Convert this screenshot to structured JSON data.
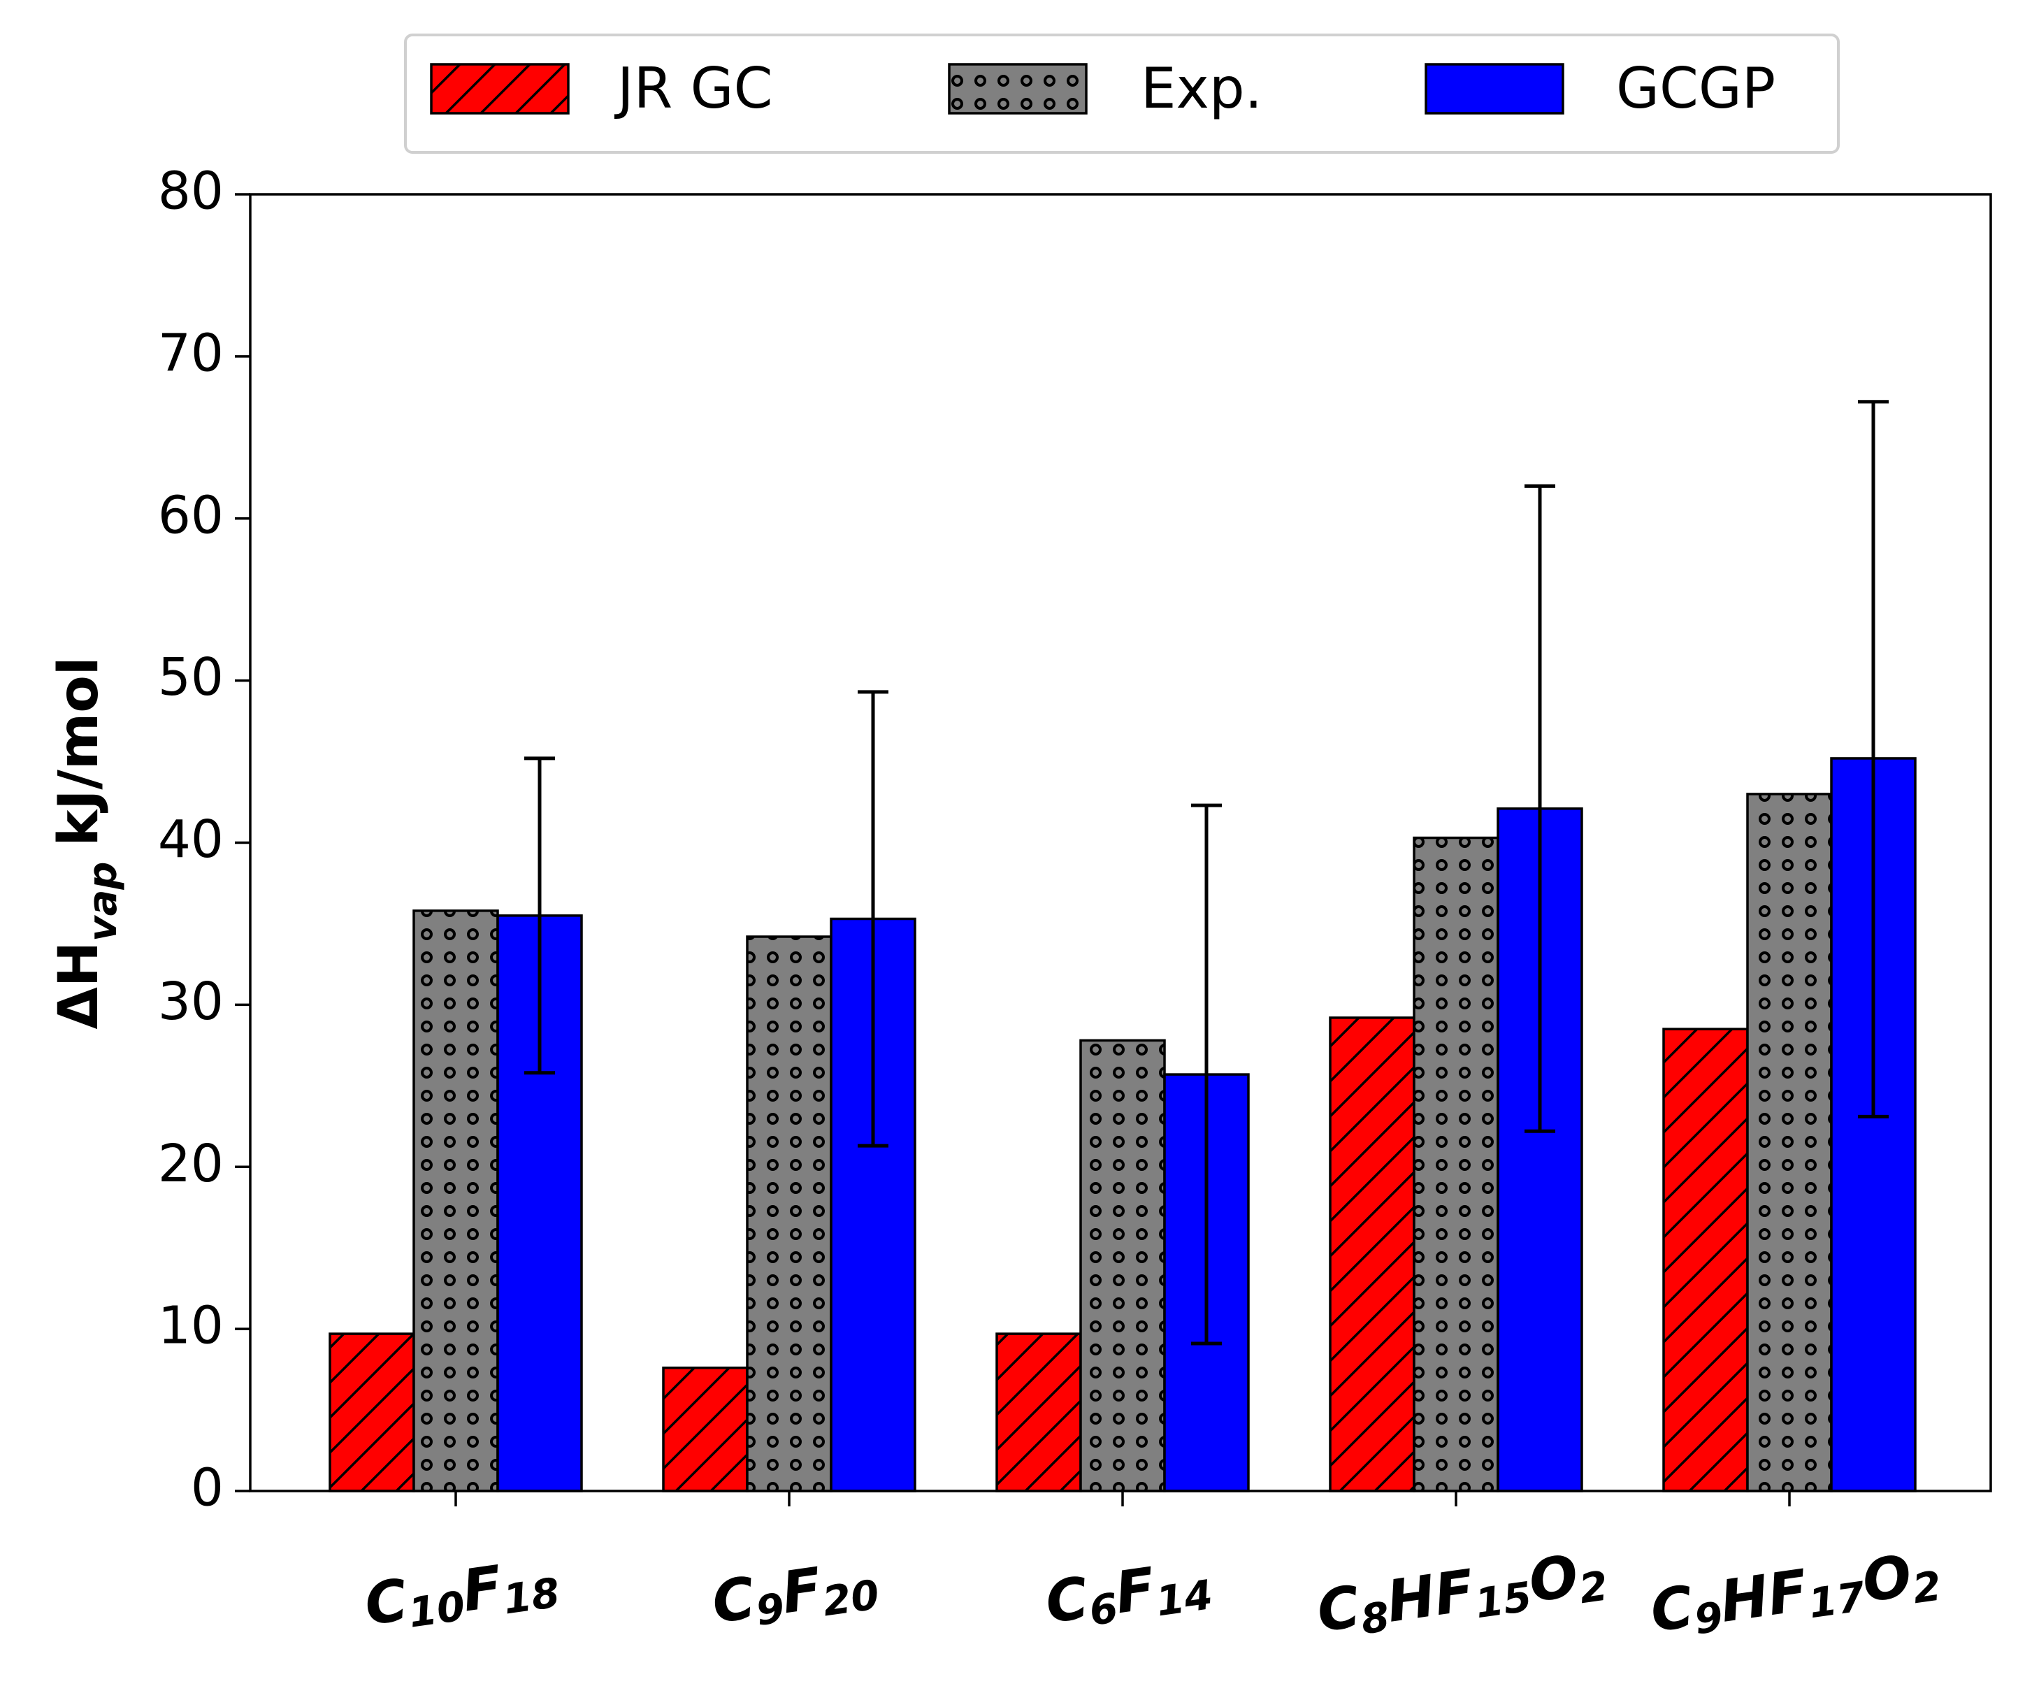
{
  "chart_data": {
    "type": "bar",
    "ylabel": {
      "symbol": "ΔH",
      "subscript": "vap",
      "unit": "kJ/mol"
    },
    "ylim": [
      0,
      80
    ],
    "yticks": [
      0,
      10,
      20,
      30,
      40,
      50,
      60,
      70,
      80
    ],
    "grid": false,
    "legend_placement": "top-center",
    "categories": [
      [
        {
          "t": "C"
        },
        {
          "t": "10",
          "sub": true
        },
        {
          "t": "F"
        },
        {
          "t": "18",
          "sub": true
        }
      ],
      [
        {
          "t": "C"
        },
        {
          "t": "9",
          "sub": true
        },
        {
          "t": "F"
        },
        {
          "t": "20",
          "sub": true
        }
      ],
      [
        {
          "t": "C"
        },
        {
          "t": "6",
          "sub": true
        },
        {
          "t": "F"
        },
        {
          "t": "14",
          "sub": true
        }
      ],
      [
        {
          "t": "C"
        },
        {
          "t": "8",
          "sub": true
        },
        {
          "t": "HF"
        },
        {
          "t": "15",
          "sub": true
        },
        {
          "t": "O"
        },
        {
          "t": "2",
          "sub": true
        }
      ],
      [
        {
          "t": "C"
        },
        {
          "t": "9",
          "sub": true
        },
        {
          "t": "HF"
        },
        {
          "t": "17",
          "sub": true
        },
        {
          "t": "O"
        },
        {
          "t": "2",
          "sub": true
        }
      ]
    ],
    "series": [
      {
        "name": "JR GC",
        "color": "#ff0000",
        "pattern": "hatch-diagonal",
        "values": [
          9.7,
          7.6,
          9.7,
          29.2,
          28.5
        ]
      },
      {
        "name": "Exp.",
        "color": "#808080",
        "pattern": "dots",
        "values": [
          35.8,
          34.2,
          27.8,
          40.3,
          43.0
        ]
      },
      {
        "name": "GCGP",
        "color": "#0000ff",
        "pattern": "solid",
        "values": [
          35.5,
          35.3,
          25.7,
          42.1,
          45.2
        ],
        "error_low": [
          25.8,
          21.3,
          9.1,
          22.2,
          23.1
        ],
        "error_high": [
          45.2,
          49.3,
          42.3,
          62.0,
          67.2
        ]
      }
    ]
  }
}
